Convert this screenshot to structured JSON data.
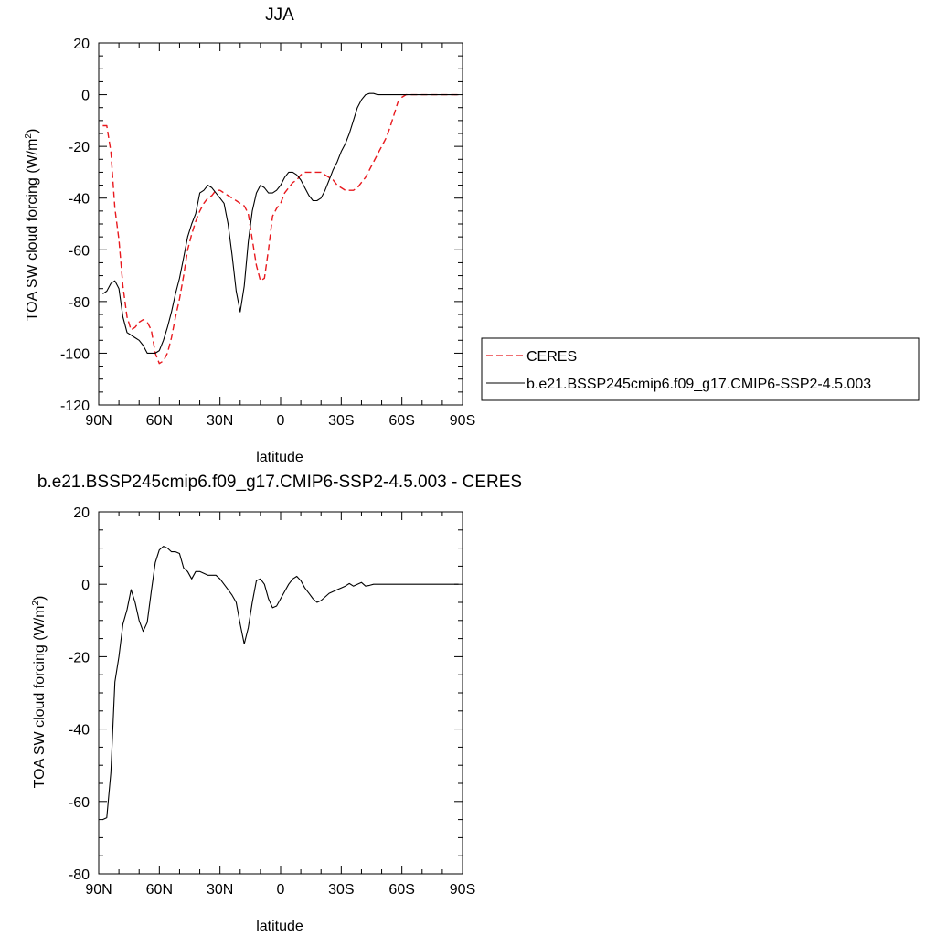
{
  "chart_data": [
    {
      "type": "line",
      "title": "JJA",
      "xlabel": "latitude",
      "ylabel_main": "TOA SW cloud forcing (W/m",
      "ylabel_sup": "2",
      "ylabel_end": ")",
      "xlim": [
        90,
        -90
      ],
      "ylim": [
        -120,
        20
      ],
      "x_ticks": [
        90,
        60,
        30,
        0,
        -30,
        -60,
        -90
      ],
      "x_tick_labels": [
        "90N",
        "60N",
        "30N",
        "0",
        "30S",
        "60S",
        "90S"
      ],
      "y_ticks": [
        20,
        0,
        -20,
        -40,
        -60,
        -80,
        -100,
        -120
      ],
      "y_tick_labels": [
        "20",
        "0",
        "-20",
        "-40",
        "-60",
        "-80",
        "-100",
        "-120"
      ],
      "legend": "right",
      "series": [
        {
          "name": "CERES",
          "color": "#e8191e",
          "dash": "dashed",
          "x": [
            88,
            86,
            84,
            82,
            80,
            78,
            76,
            74,
            72,
            70,
            68,
            66,
            64,
            62,
            60,
            58,
            56,
            54,
            52,
            50,
            48,
            46,
            44,
            42,
            40,
            38,
            36,
            34,
            32,
            30,
            28,
            26,
            24,
            22,
            20,
            18,
            16,
            14,
            12,
            10,
            8,
            6,
            4,
            2,
            0,
            -2,
            -4,
            -6,
            -8,
            -10,
            -12,
            -14,
            -16,
            -18,
            -20,
            -22,
            -24,
            -26,
            -28,
            -30,
            -32,
            -34,
            -36,
            -38,
            -40,
            -42,
            -44,
            -46,
            -48,
            -50,
            -52,
            -54,
            -56,
            -58,
            -60,
            -62,
            -64,
            -66,
            -68,
            -70,
            -72,
            -74,
            -76,
            -78,
            -80,
            -82,
            -84,
            -86,
            -88
          ],
          "y": [
            -12,
            -12,
            -22,
            -44,
            -56,
            -74,
            -86,
            -91,
            -90,
            -88,
            -87,
            -88,
            -91,
            -100,
            -104,
            -103,
            -100,
            -94,
            -86,
            -79,
            -70,
            -60,
            -54,
            -49,
            -45,
            -42,
            -40,
            -39,
            -37,
            -37,
            -38,
            -39,
            -40,
            -41,
            -42,
            -43,
            -46,
            -56,
            -66,
            -72,
            -71,
            -60,
            -47,
            -44,
            -42,
            -38,
            -36,
            -34,
            -33,
            -31,
            -30,
            -30,
            -30,
            -30,
            -30,
            -31,
            -32,
            -33,
            -35,
            -36,
            -37,
            -37,
            -37,
            -36,
            -34,
            -32,
            -29,
            -26,
            -23,
            -20,
            -17,
            -13,
            -8,
            -3,
            -1,
            0,
            0,
            0,
            0,
            0,
            0,
            0,
            0,
            0,
            0,
            0,
            0,
            0,
            0
          ]
        },
        {
          "name": "b.e21.BSSP245cmip6.f09_g17.CMIP6-SSP2-4.5.003",
          "color": "#000000",
          "dash": "solid",
          "x": [
            88,
            86,
            84,
            82,
            80,
            78,
            76,
            74,
            72,
            70,
            68,
            66,
            64,
            62,
            60,
            58,
            56,
            54,
            52,
            50,
            48,
            46,
            44,
            42,
            40,
            38,
            36,
            34,
            32,
            30,
            28,
            26,
            24,
            22,
            20,
            18,
            16,
            14,
            12,
            10,
            8,
            6,
            4,
            2,
            0,
            -2,
            -4,
            -6,
            -8,
            -10,
            -12,
            -14,
            -16,
            -18,
            -20,
            -22,
            -24,
            -26,
            -28,
            -30,
            -32,
            -34,
            -36,
            -38,
            -40,
            -42,
            -44,
            -46,
            -48,
            -50,
            -52,
            -54,
            -56,
            -58,
            -60,
            -62,
            -64,
            -66,
            -68,
            -70,
            -72,
            -74,
            -76,
            -78,
            -80,
            -82,
            -84,
            -86,
            -88
          ],
          "y": [
            -77,
            -76,
            -73,
            -72,
            -75,
            -86,
            -92,
            -93,
            -94,
            -95,
            -97,
            -100,
            -100,
            -100,
            -99,
            -95,
            -90,
            -84,
            -77,
            -71,
            -63,
            -55,
            -50,
            -46,
            -38,
            -37,
            -35,
            -36,
            -38,
            -40,
            -42,
            -50,
            -62,
            -76,
            -84,
            -74,
            -57,
            -45,
            -38,
            -35,
            -36,
            -38,
            -38,
            -37,
            -35,
            -32,
            -30,
            -30,
            -31,
            -33,
            -36,
            -39,
            -41,
            -41,
            -40,
            -37,
            -33,
            -29,
            -26,
            -22,
            -19,
            -15,
            -10,
            -5,
            -2,
            0,
            0.5,
            0.5,
            0,
            0,
            0,
            0,
            0,
            0,
            0,
            0,
            0,
            0,
            0,
            0,
            0,
            0,
            0,
            0,
            0,
            0,
            0,
            0,
            0
          ]
        }
      ]
    },
    {
      "type": "line",
      "title": "b.e21.BSSP245cmip6.f09_g17.CMIP6-SSP2-4.5.003 - CERES",
      "xlabel": "latitude",
      "ylabel_main": "TOA SW cloud forcing (W/m",
      "ylabel_sup": "2",
      "ylabel_end": ")",
      "xlim": [
        90,
        -90
      ],
      "ylim": [
        -80,
        20
      ],
      "x_ticks": [
        90,
        60,
        30,
        0,
        -30,
        -60,
        -90
      ],
      "x_tick_labels": [
        "90N",
        "60N",
        "30N",
        "0",
        "30S",
        "60S",
        "90S"
      ],
      "y_ticks": [
        20,
        0,
        -20,
        -40,
        -60,
        -80
      ],
      "y_tick_labels": [
        "20",
        "0",
        "-20",
        "-40",
        "-60",
        "-80"
      ],
      "series": [
        {
          "color": "#000000",
          "dash": "solid",
          "x": [
            88,
            86,
            84,
            82,
            80,
            78,
            76,
            74,
            72,
            70,
            68,
            66,
            64,
            62,
            60,
            58,
            56,
            54,
            52,
            50,
            48,
            46,
            44,
            42,
            40,
            38,
            36,
            34,
            32,
            30,
            28,
            26,
            24,
            22,
            20,
            18,
            16,
            14,
            12,
            10,
            8,
            6,
            4,
            2,
            0,
            -2,
            -4,
            -6,
            -8,
            -10,
            -12,
            -14,
            -16,
            -18,
            -20,
            -22,
            -24,
            -26,
            -28,
            -30,
            -32,
            -34,
            -36,
            -38,
            -40,
            -42,
            -44,
            -46,
            -48,
            -50,
            -52,
            -54,
            -56,
            -58,
            -60,
            -62,
            -64,
            -66,
            -68,
            -70,
            -72,
            -74,
            -76,
            -78,
            -80,
            -82,
            -84,
            -86,
            -88
          ],
          "y": [
            -65,
            -64.5,
            -52,
            -27,
            -20,
            -11,
            -7,
            -1.5,
            -5,
            -10,
            -13,
            -10.5,
            -2,
            6,
            9.5,
            10.5,
            10,
            9,
            9,
            8.5,
            4.5,
            3.5,
            1.5,
            3.5,
            3.5,
            3,
            2.5,
            2.5,
            2.5,
            1.5,
            0,
            -1.5,
            -3,
            -5,
            -11,
            -16.5,
            -12,
            -5,
            1,
            1.5,
            0,
            -4,
            -6.5,
            -6,
            -4,
            -2,
            0,
            1.5,
            2.2,
            1,
            -1,
            -2.5,
            -4,
            -5,
            -4.5,
            -3.5,
            -2.5,
            -2,
            -1.5,
            -1,
            -0.5,
            0.2,
            -0.5,
            0,
            0.5,
            -0.5,
            -0.3,
            0,
            0,
            0,
            0,
            0,
            0,
            0,
            0,
            0,
            0,
            0,
            0,
            0,
            0,
            0,
            0,
            0,
            0,
            0,
            0,
            0,
            0
          ]
        }
      ]
    }
  ]
}
